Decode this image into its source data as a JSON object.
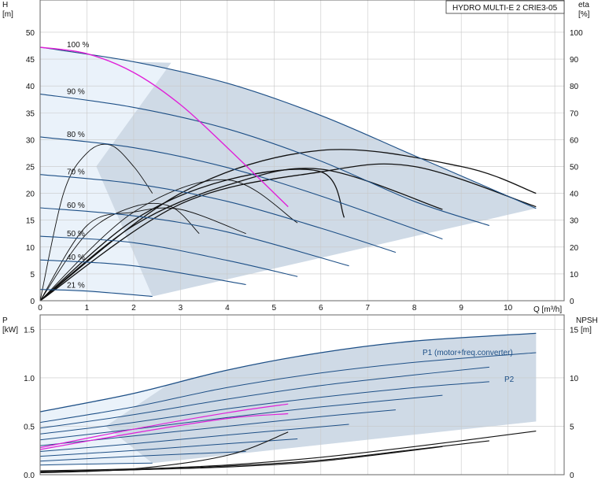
{
  "title": "HYDRO MULTI-E 2 CRIE3-05",
  "colors": {
    "frame": "#666666",
    "grid": "#c8c8c8",
    "area_dark": "#cfdae6",
    "area_light": "#eaf2fa",
    "curve_blue": "#1d4f86",
    "curve_black": "#111111",
    "magenta": "#e020d8"
  },
  "chart_data": [
    {
      "type": "line",
      "panel": "head",
      "xlabel": "Q [m³/h]",
      "ylabel_left": "H",
      "ylabel_left_unit": "[m]",
      "ylabel_right": "eta",
      "ylabel_right_unit": "[%]",
      "xlim": [
        0,
        11.2
      ],
      "ylim": [
        0,
        56
      ],
      "y2lim": [
        0,
        112
      ],
      "x_ticks": [
        0,
        1,
        2,
        3,
        4,
        5,
        6,
        7,
        8,
        9,
        10
      ],
      "y_ticks": [
        0,
        5,
        10,
        15,
        20,
        25,
        30,
        35,
        40,
        45,
        50
      ],
      "y2_ticks": [
        0,
        10,
        20,
        30,
        40,
        50,
        60,
        70,
        80,
        90,
        100
      ],
      "grid": true,
      "speed_curves": [
        {
          "label": "100 %",
          "x": [
            0,
            2.0,
            4.0,
            6.0,
            8.0,
            10.6
          ],
          "y": [
            47.2,
            44.5,
            40.5,
            34.5,
            27.0,
            17.2
          ]
        },
        {
          "label": "90 %",
          "x": [
            0,
            2.0,
            4.0,
            6.0,
            8.0,
            9.6
          ],
          "y": [
            38.5,
            36.0,
            32.0,
            26.0,
            18.5,
            14.0
          ]
        },
        {
          "label": "80 %",
          "x": [
            0,
            2.0,
            4.0,
            6.0,
            8.6
          ],
          "y": [
            30.5,
            28.5,
            24.8,
            19.5,
            11.5
          ]
        },
        {
          "label": "70 %",
          "x": [
            0,
            2.0,
            4.0,
            6.0,
            7.6
          ],
          "y": [
            23.5,
            21.8,
            18.5,
            13.5,
            9.0
          ]
        },
        {
          "label": "60 %",
          "x": [
            0,
            2.0,
            4.0,
            6.6
          ],
          "y": [
            17.3,
            15.8,
            12.8,
            6.5
          ]
        },
        {
          "label": "50 %",
          "x": [
            0,
            2.0,
            4.0,
            5.5
          ],
          "y": [
            12.0,
            10.8,
            7.5,
            4.5
          ]
        },
        {
          "label": "40 %",
          "x": [
            0,
            2.0,
            4.4
          ],
          "y": [
            7.6,
            6.5,
            3.0
          ]
        },
        {
          "label": "21 %",
          "x": [
            0,
            1.0,
            2.4
          ],
          "y": [
            2.1,
            1.8,
            0.8
          ]
        }
      ],
      "system_curve": {
        "name": "",
        "x": [
          0,
          1,
          2,
          3,
          4,
          5.3
        ],
        "y": [
          47.2,
          46.0,
          42.5,
          36.5,
          28.5,
          17.5
        ]
      },
      "efficiency_curves_percent": [
        {
          "x": [
            0,
            0.5,
            1.0,
            1.5,
            2.0,
            2.4
          ],
          "y": [
            0,
            40,
            55,
            58,
            50,
            40
          ]
        },
        {
          "x": [
            0,
            1.0,
            2.0,
            2.8,
            3.4
          ],
          "y": [
            0,
            25,
            35,
            35,
            25
          ]
        },
        {
          "x": [
            0,
            1.0,
            2.0,
            3.0,
            4.4
          ],
          "y": [
            0,
            28,
            33,
            34,
            25
          ]
        },
        {
          "x": [
            0,
            2.0,
            4.0,
            5.5
          ],
          "y": [
            0,
            33,
            45,
            29
          ]
        },
        {
          "x": [
            0,
            2.0,
            4.0,
            6.0,
            6.5
          ],
          "y": [
            0,
            30,
            45,
            48,
            31
          ]
        },
        {
          "x": [
            0,
            2.0,
            4.0,
            6.0,
            8.6
          ],
          "y": [
            0,
            28,
            43,
            49,
            34
          ]
        },
        {
          "x": [
            0,
            3.0,
            6.0,
            8.0,
            10.6
          ],
          "y": [
            0,
            36,
            48,
            50,
            35
          ]
        },
        {
          "x": [
            0,
            3.0,
            6.0,
            9.0,
            10.6
          ],
          "y": [
            0,
            40,
            56,
            50,
            40
          ]
        }
      ]
    },
    {
      "type": "line",
      "panel": "power",
      "ylabel_left": "P",
      "ylabel_left_unit": "[kW]",
      "ylabel_right": "NPSH",
      "ylabel_right_unit": "[m]",
      "xlim": [
        0,
        11.2
      ],
      "ylim": [
        0,
        1.65
      ],
      "y2lim": [
        0,
        16.5
      ],
      "y_ticks": [
        0.0,
        0.5,
        1.0,
        1.5
      ],
      "y2_ticks": [
        0,
        5,
        10,
        15
      ],
      "grid": true,
      "series_labels": [
        "P1 (motor+freq.converter)",
        "P2"
      ],
      "power_curves": [
        {
          "x": [
            0,
            2,
            4,
            6,
            8,
            10.6
          ],
          "y": [
            0.65,
            0.84,
            1.08,
            1.26,
            1.38,
            1.46
          ]
        },
        {
          "x": [
            0,
            2,
            4,
            6,
            8,
            10.6
          ],
          "y": [
            0.54,
            0.7,
            0.9,
            1.05,
            1.16,
            1.26
          ]
        },
        {
          "x": [
            0,
            2,
            4,
            6,
            8,
            9.6
          ],
          "y": [
            0.48,
            0.62,
            0.78,
            0.92,
            1.03,
            1.11
          ]
        },
        {
          "x": [
            0,
            2,
            4,
            6,
            8,
            9.6
          ],
          "y": [
            0.42,
            0.54,
            0.68,
            0.8,
            0.9,
            0.96
          ]
        },
        {
          "x": [
            0,
            2,
            4,
            6,
            8.6
          ],
          "y": [
            0.36,
            0.47,
            0.59,
            0.7,
            0.82
          ]
        },
        {
          "x": [
            0,
            2,
            4,
            6,
            7.6
          ],
          "y": [
            0.3,
            0.4,
            0.5,
            0.6,
            0.67
          ]
        },
        {
          "x": [
            0,
            2,
            4,
            6.6
          ],
          "y": [
            0.24,
            0.32,
            0.41,
            0.52
          ]
        },
        {
          "x": [
            0,
            2,
            4,
            5.5
          ],
          "y": [
            0.19,
            0.25,
            0.32,
            0.37
          ]
        },
        {
          "x": [
            0,
            2,
            4.4
          ],
          "y": [
            0.14,
            0.19,
            0.24
          ]
        },
        {
          "x": [
            0,
            1,
            2.4
          ],
          "y": [
            0.1,
            0.11,
            0.12
          ]
        }
      ],
      "magenta_curves": [
        {
          "x": [
            0,
            2,
            4,
            5.3
          ],
          "y": [
            0.28,
            0.47,
            0.64,
            0.73
          ]
        },
        {
          "x": [
            0,
            2,
            4,
            5.3
          ],
          "y": [
            0.26,
            0.43,
            0.58,
            0.63
          ]
        }
      ],
      "npsh_curves": [
        {
          "x": [
            0,
            2,
            4,
            6,
            8,
            10.6
          ],
          "y": [
            0.4,
            0.6,
            1.0,
            1.8,
            2.9,
            4.5
          ]
        },
        {
          "x": [
            0,
            2,
            4,
            6,
            8,
            9.6
          ],
          "y": [
            0.3,
            0.5,
            0.9,
            1.5,
            2.6,
            3.5
          ]
        },
        {
          "x": [
            0,
            2,
            4,
            6,
            8.6
          ],
          "y": [
            0.3,
            0.5,
            0.8,
            1.4,
            2.9
          ]
        },
        {
          "x": [
            0,
            2,
            4,
            5.3
          ],
          "y": [
            0.2,
            0.6,
            2.0,
            4.4
          ]
        }
      ]
    }
  ]
}
